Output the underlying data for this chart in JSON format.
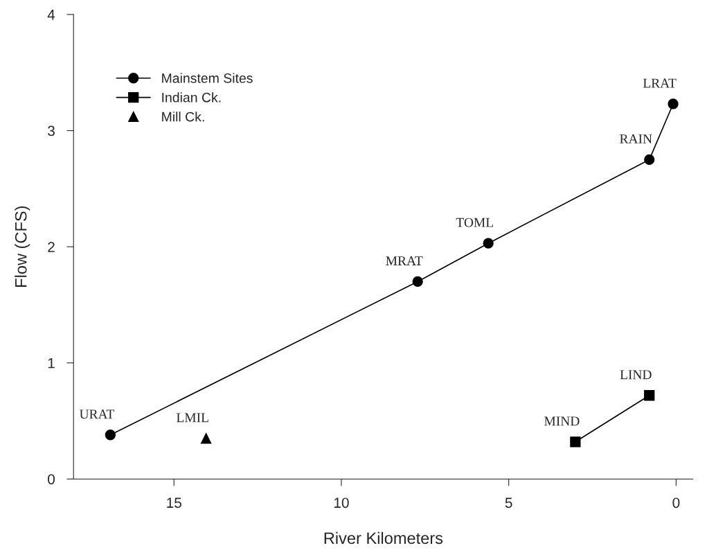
{
  "chart_data": {
    "type": "line",
    "xlabel": "River Kilometers",
    "ylabel": "Flow (CFS)",
    "xlim": [
      18,
      -0.5
    ],
    "xticks": [
      15,
      10,
      5,
      0
    ],
    "ylim": [
      0,
      4
    ],
    "yticks": [
      0,
      1,
      2,
      3,
      4
    ],
    "grid": false,
    "legend": "top left",
    "line_style": "solid",
    "series": [
      {
        "name": "Mainstem Sites",
        "color": "#000000",
        "marker": "circle",
        "x": [
          16.9,
          7.72,
          5.61,
          0.8,
          0.09
        ],
        "values": [
          0.38,
          1.7,
          2.03,
          2.75,
          3.23
        ]
      },
      {
        "name": "Indian Ck.",
        "color": "#000000",
        "marker": "square",
        "x": [
          3.01,
          0.8
        ],
        "values": [
          0.32,
          0.72
        ]
      },
      {
        "name": "Mill Ck.",
        "type": "scatter",
        "color": "#000000",
        "marker": "triangle",
        "x": [
          14.04
        ],
        "values": [
          0.35
        ]
      }
    ],
    "annotations": [
      {
        "text": "URAT",
        "x": 16.9,
        "y": 0.38
      },
      {
        "text": "LMIL",
        "x": 14.04,
        "y": 0.35
      },
      {
        "text": "MRAT",
        "x": 7.72,
        "y": 1.7
      },
      {
        "text": "TOML",
        "x": 5.61,
        "y": 2.03
      },
      {
        "text": "RAIN",
        "x": 0.8,
        "y": 2.75
      },
      {
        "text": "LRAT",
        "x": 0.09,
        "y": 3.23
      },
      {
        "text": "MIND",
        "x": 3.01,
        "y": 0.32
      },
      {
        "text": "LIND",
        "x": 0.8,
        "y": 0.72
      }
    ]
  }
}
